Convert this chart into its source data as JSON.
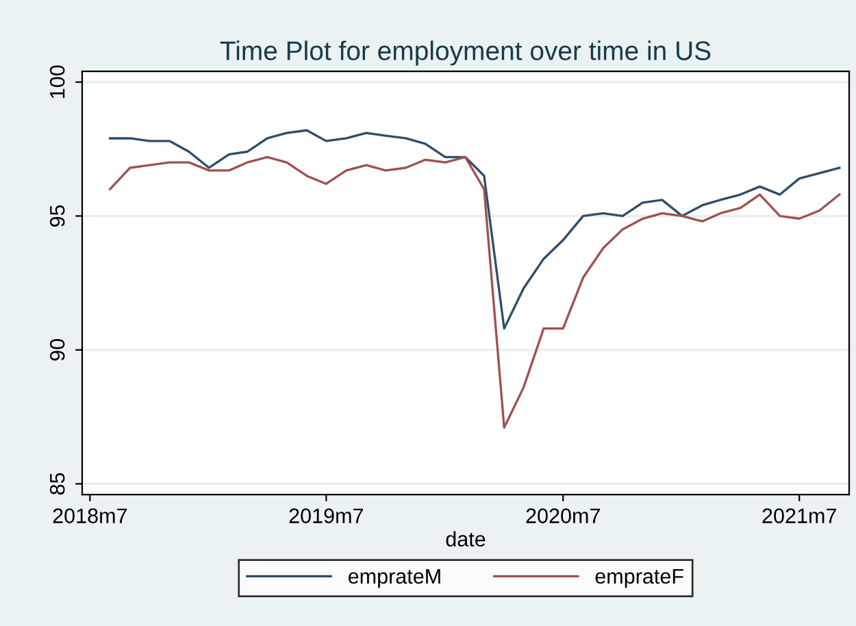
{
  "chart_data": {
    "type": "line",
    "title": "Time Plot for employment over time in US",
    "xlabel": "date",
    "x": [
      "2018-08",
      "2018-09",
      "2018-10",
      "2018-11",
      "2018-12",
      "2019-01",
      "2019-02",
      "2019-03",
      "2019-04",
      "2019-05",
      "2019-06",
      "2019-07",
      "2019-08",
      "2019-09",
      "2019-10",
      "2019-11",
      "2019-12",
      "2020-01",
      "2020-02",
      "2020-03",
      "2020-04",
      "2020-05",
      "2020-06",
      "2020-07",
      "2020-08",
      "2020-09",
      "2020-10",
      "2020-11",
      "2020-12",
      "2021-01",
      "2021-02",
      "2021-03",
      "2021-04",
      "2021-05",
      "2021-06",
      "2021-07",
      "2021-08",
      "2021-09"
    ],
    "series": [
      {
        "name": "emprateM",
        "color": "#2d4e6b",
        "values": [
          97.9,
          97.9,
          97.8,
          97.8,
          97.4,
          96.8,
          97.3,
          97.4,
          97.9,
          98.1,
          98.2,
          97.8,
          97.9,
          98.1,
          98.0,
          97.9,
          97.7,
          97.2,
          97.2,
          96.5,
          90.8,
          92.3,
          93.4,
          94.1,
          95.0,
          95.1,
          95.0,
          95.5,
          95.6,
          95.0,
          95.4,
          95.6,
          95.8,
          96.1,
          95.8,
          96.4,
          96.6,
          96.8
        ]
      },
      {
        "name": "emprateF",
        "color": "#a0514f",
        "values": [
          96.0,
          96.8,
          96.9,
          97.0,
          97.0,
          96.7,
          96.7,
          97.0,
          97.2,
          97.0,
          96.5,
          96.2,
          96.7,
          96.9,
          96.7,
          96.8,
          97.1,
          97.0,
          97.2,
          96.0,
          87.1,
          88.6,
          90.8,
          90.8,
          92.7,
          93.8,
          94.5,
          94.9,
          95.1,
          95.0,
          94.8,
          95.1,
          95.3,
          95.8,
          95.0,
          94.9,
          95.2,
          95.8
        ]
      }
    ],
    "xlim": [
      "2018-06-19",
      "2021-09-16"
    ],
    "xticks": [
      {
        "value": "2018-07",
        "label": "2018m7"
      },
      {
        "value": "2019-07",
        "label": "2019m7"
      },
      {
        "value": "2020-07",
        "label": "2020m7"
      },
      {
        "value": "2021-07",
        "label": "2021m7"
      }
    ],
    "ylim": [
      84.6,
      100.4
    ],
    "yticks": [
      85,
      90,
      95,
      100
    ],
    "grid": "y",
    "legend": "bottom",
    "line_style": "solid",
    "marker": "none"
  }
}
